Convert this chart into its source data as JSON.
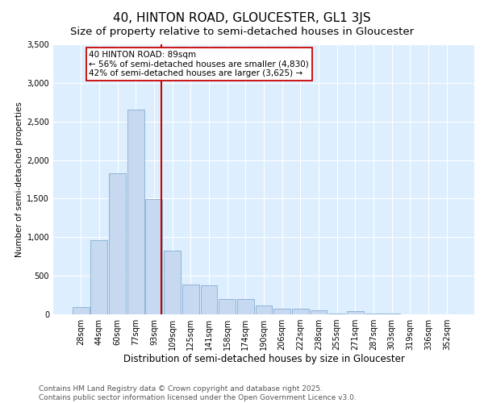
{
  "title": "40, HINTON ROAD, GLOUCESTER, GL1 3JS",
  "subtitle": "Size of property relative to semi-detached houses in Gloucester",
  "xlabel": "Distribution of semi-detached houses by size in Gloucester",
  "ylabel": "Number of semi-detached properties",
  "property_label": "40 HINTON ROAD: 89sqm",
  "pct_smaller": 56,
  "pct_larger": 42,
  "count_smaller": 4830,
  "count_larger": 3625,
  "bin_labels": [
    "28sqm",
    "44sqm",
    "60sqm",
    "77sqm",
    "93sqm",
    "109sqm",
    "125sqm",
    "141sqm",
    "158sqm",
    "174sqm",
    "190sqm",
    "206sqm",
    "222sqm",
    "238sqm",
    "255sqm",
    "271sqm",
    "287sqm",
    "303sqm",
    "319sqm",
    "336sqm",
    "352sqm"
  ],
  "bar_values": [
    95,
    960,
    1830,
    2650,
    1490,
    830,
    390,
    380,
    200,
    200,
    120,
    70,
    70,
    50,
    10,
    40,
    10,
    10,
    5,
    5,
    5
  ],
  "bar_color": "#c6d9f0",
  "bar_edge_color": "#85aed4",
  "vline_bin_index": 4,
  "vline_color": "#cc0000",
  "annotation_box_color": "#cc0000",
  "ylim": [
    0,
    3500
  ],
  "yticks": [
    0,
    500,
    1000,
    1500,
    2000,
    2500,
    3000,
    3500
  ],
  "plot_bg_color": "#ddeeff",
  "footer": "Contains HM Land Registry data © Crown copyright and database right 2025.\nContains public sector information licensed under the Open Government Licence v3.0.",
  "title_fontsize": 11,
  "subtitle_fontsize": 9.5,
  "xlabel_fontsize": 8.5,
  "ylabel_fontsize": 7.5,
  "tick_fontsize": 7,
  "footer_fontsize": 6.5,
  "anno_fontsize": 7.5
}
